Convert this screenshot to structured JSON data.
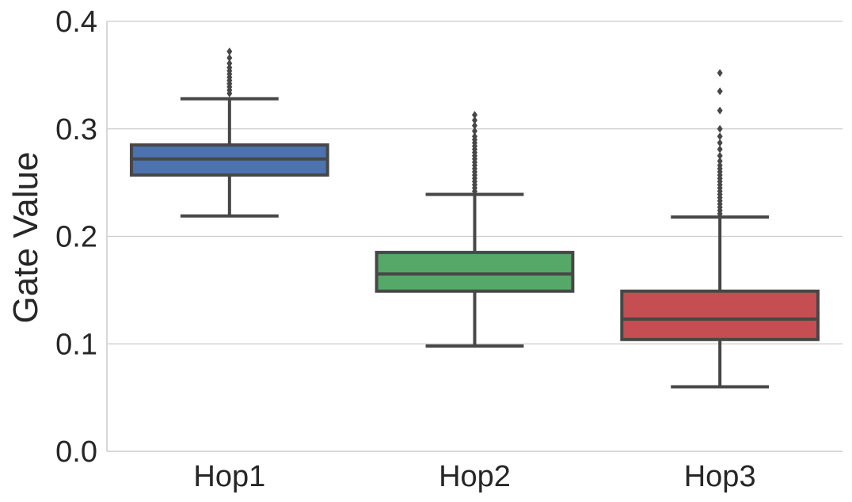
{
  "chart_data": {
    "type": "box",
    "title": "",
    "xlabel": "",
    "ylabel": "Gate Value",
    "ylim": [
      0.0,
      0.4
    ],
    "yticks": [
      "0.0",
      "0.1",
      "0.2",
      "0.3",
      "0.4"
    ],
    "grid": "horizontal",
    "categories": [
      "Hop1",
      "Hop2",
      "Hop3"
    ],
    "boxes": [
      {
        "label": "Hop1",
        "color": "#4C72B0",
        "whisker_low": 0.219,
        "q1": 0.257,
        "median": 0.272,
        "q3": 0.285,
        "whisker_high": 0.328,
        "outliers": [
          0.333,
          0.336,
          0.339,
          0.342,
          0.345,
          0.348,
          0.351,
          0.354,
          0.357,
          0.361,
          0.366,
          0.372
        ]
      },
      {
        "label": "Hop2",
        "color": "#55A868",
        "whisker_low": 0.098,
        "q1": 0.149,
        "median": 0.165,
        "q3": 0.185,
        "whisker_high": 0.239,
        "outliers": [
          0.242,
          0.245,
          0.248,
          0.251,
          0.254,
          0.257,
          0.26,
          0.263,
          0.266,
          0.269,
          0.272,
          0.275,
          0.278,
          0.281,
          0.284,
          0.287,
          0.29,
          0.293,
          0.298,
          0.303,
          0.308,
          0.313
        ]
      },
      {
        "label": "Hop3",
        "color": "#C44E52",
        "whisker_low": 0.06,
        "q1": 0.104,
        "median": 0.123,
        "q3": 0.149,
        "whisker_high": 0.218,
        "outliers": [
          0.221,
          0.224,
          0.227,
          0.23,
          0.233,
          0.236,
          0.239,
          0.242,
          0.245,
          0.248,
          0.251,
          0.254,
          0.257,
          0.26,
          0.263,
          0.266,
          0.27,
          0.275,
          0.281,
          0.287,
          0.293,
          0.3,
          0.317,
          0.335,
          0.352
        ]
      }
    ]
  }
}
